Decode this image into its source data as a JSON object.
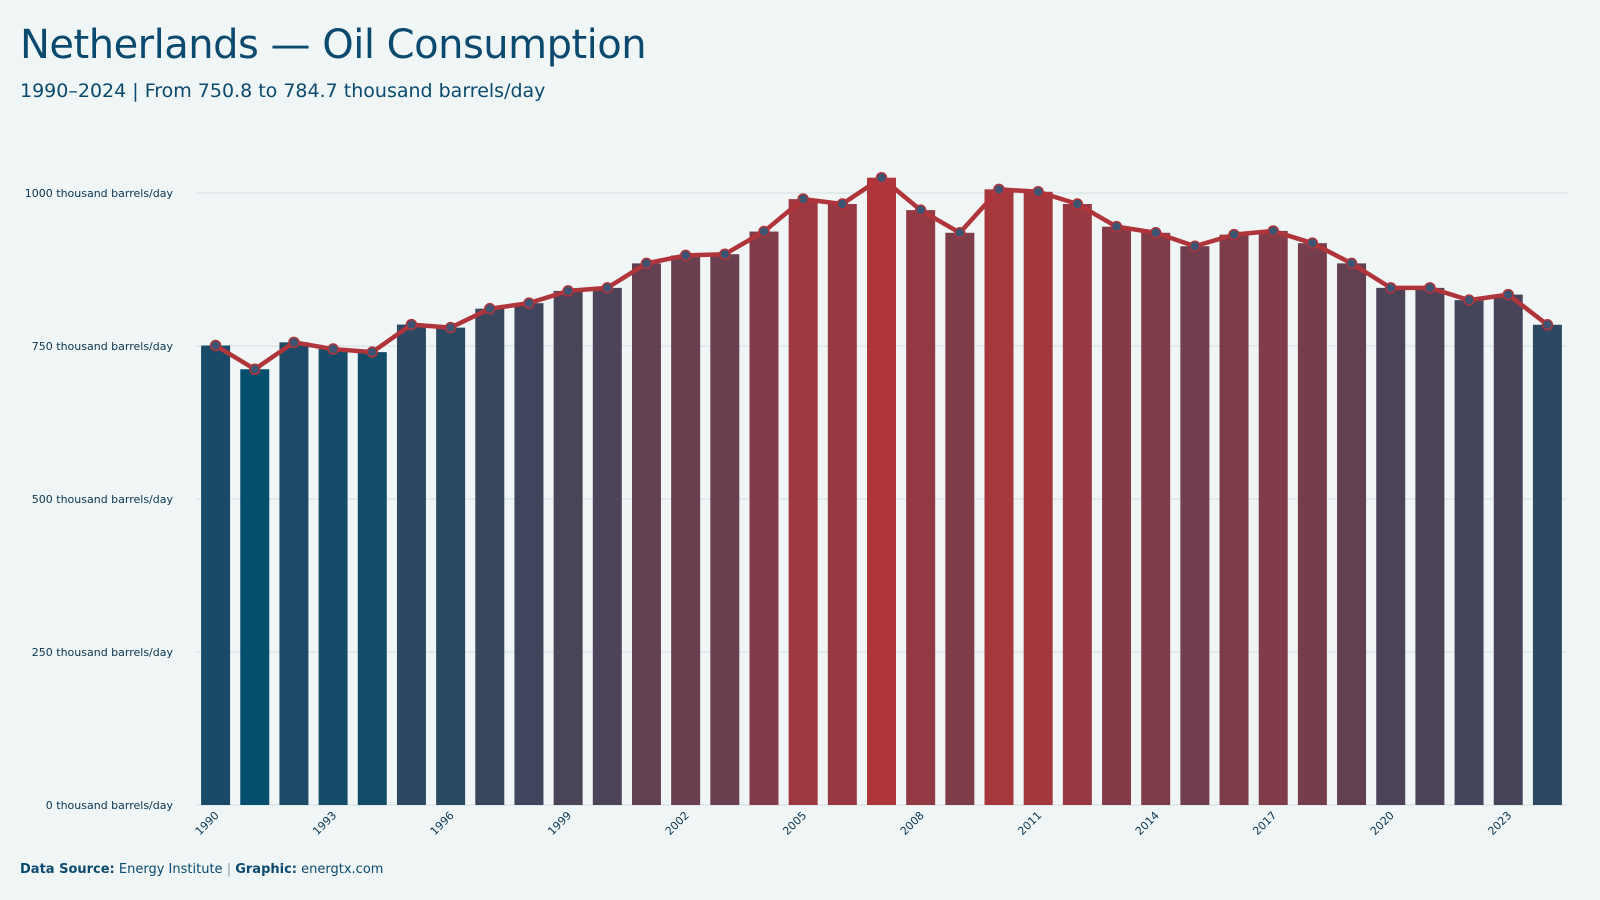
{
  "title": "Netherlands — Oil Consumption",
  "subtitle": "1990–2024 | From 750.8 to 784.7 thousand barrels/day",
  "footer": {
    "source_label": "Data Source:",
    "source_value": "Energy Institute",
    "separator": "|",
    "graphic_label": "Graphic:",
    "graphic_value": "energtx.com"
  },
  "colors": {
    "low": "#044e6e",
    "high": "#b0353a",
    "line": "#b0353a",
    "point_fill": "#3d5472",
    "title": "#0b4a6e",
    "grid": "#d6dee3",
    "background": "#f0f5f5"
  },
  "chart_data": {
    "type": "bar",
    "title": "Netherlands — Oil Consumption",
    "subtitle": "1990–2024 | From 750.8 to 784.7 thousand barrels/day",
    "xlabel": "",
    "ylabel": "",
    "ylim": [
      0,
      1000
    ],
    "yticks": [
      0,
      250,
      500,
      750,
      1000
    ],
    "ytick_labels": [
      "0 thousand barrels/day",
      "250 thousand barrels/day",
      "500 thousand barrels/day",
      "750 thousand barrels/day",
      "1000 thousand barrels/day"
    ],
    "xtick_labels": [
      "1990",
      "1993",
      "1996",
      "1999",
      "2002",
      "2005",
      "2008",
      "2011",
      "2014",
      "2017",
      "2020",
      "2023"
    ],
    "grid": true,
    "overlay": "line with points",
    "categories": [
      "1990",
      "1991",
      "1992",
      "1993",
      "1994",
      "1995",
      "1996",
      "1997",
      "1998",
      "1999",
      "2000",
      "2001",
      "2002",
      "2003",
      "2004",
      "2005",
      "2006",
      "2007",
      "2008",
      "2009",
      "2010",
      "2011",
      "2012",
      "2013",
      "2014",
      "2015",
      "2016",
      "2017",
      "2018",
      "2019",
      "2020",
      "2021",
      "2022",
      "2023",
      "2024"
    ],
    "values": [
      750.8,
      712,
      756,
      745,
      740,
      785,
      780,
      811,
      820,
      840,
      845,
      885,
      898,
      900,
      937,
      990,
      982,
      1025,
      972,
      935,
      1006,
      1002,
      982,
      945,
      935,
      913,
      932,
      938,
      918,
      885,
      845,
      845,
      825,
      834,
      784.7
    ]
  }
}
